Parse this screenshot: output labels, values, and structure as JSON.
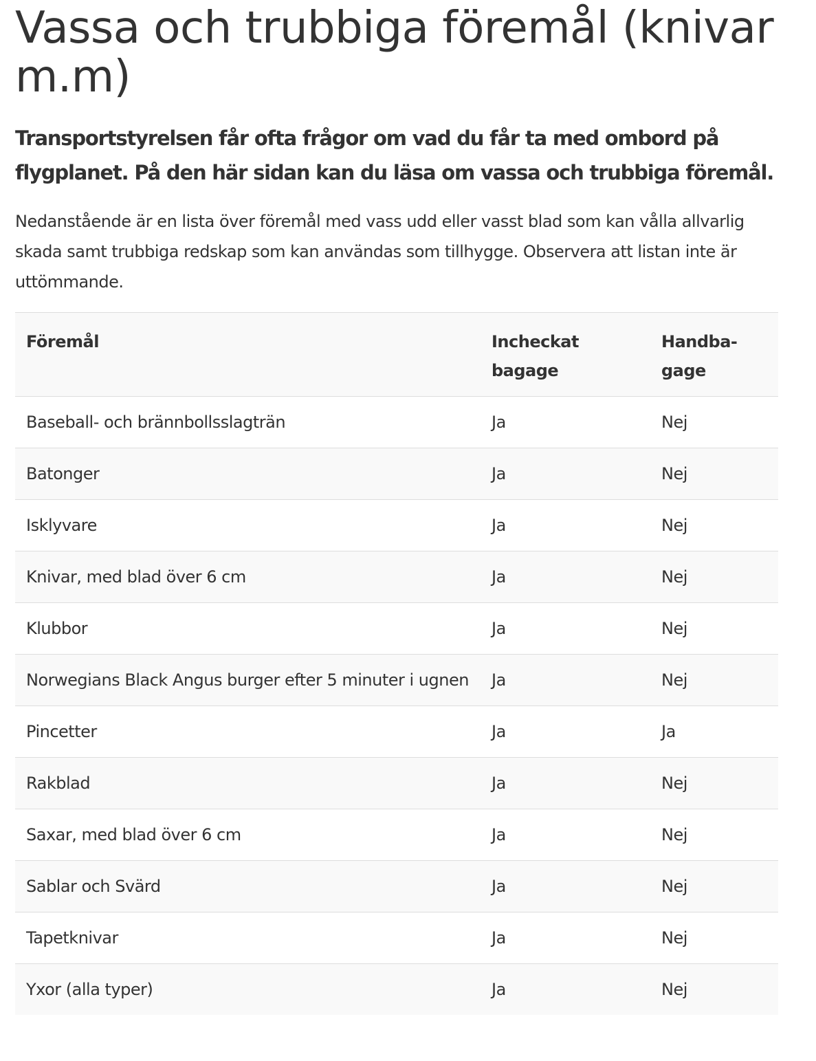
{
  "heading": "Vassa och trubbiga föremål (knivar m.m)",
  "lead": "Transportstyrelsen får ofta frågor om vad du får ta med ombord på flygplanet. På den här sidan kan du läsa om vassa och trubbiga föremål.",
  "intro": "Nedanstående är en lista över föremål med vass udd eller vasst blad som kan vålla allvarlig skada samt trubbiga redskap som kan användas som tillhygge. Observera att listan inte är uttömmande.",
  "table": {
    "headers": [
      "Föremål",
      "Incheckat bagage",
      "Handba-gage"
    ],
    "rows": [
      [
        "Baseball- och brännbollsslagträn",
        "Ja",
        "Nej"
      ],
      [
        "Batonger",
        "Ja",
        "Nej"
      ],
      [
        "Isklyvare",
        "Ja",
        "Nej"
      ],
      [
        "Knivar, med blad över 6 cm",
        "Ja",
        "Nej"
      ],
      [
        "Klubbor",
        "Ja",
        "Nej"
      ],
      [
        "Norwegians Black Angus burger efter 5 minuter i ugnen",
        "Ja",
        "Nej"
      ],
      [
        "Pincetter",
        "Ja",
        "Ja"
      ],
      [
        "Rakblad",
        "Ja",
        "Nej"
      ],
      [
        "Saxar, med blad över 6 cm",
        "Ja",
        "Nej"
      ],
      [
        "Sablar och Svärd",
        "Ja",
        "Nej"
      ],
      [
        "Tapetknivar",
        "Ja",
        "Nej"
      ],
      [
        "Yxor (alla typer)",
        "Ja",
        "Nej"
      ]
    ]
  }
}
